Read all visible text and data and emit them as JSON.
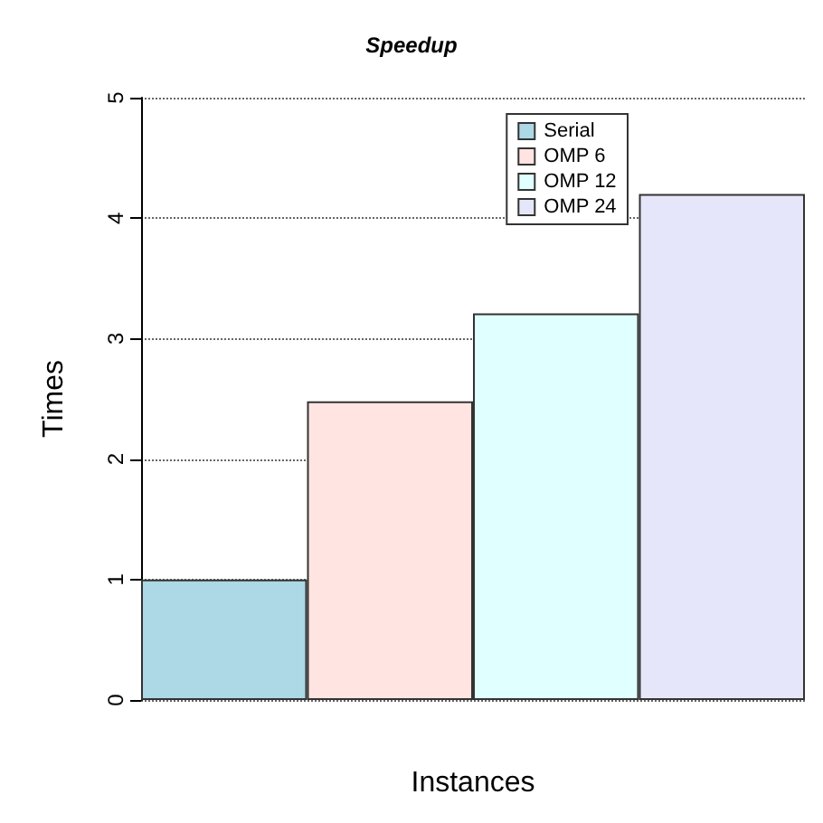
{
  "chart_data": {
    "type": "bar",
    "title": "Speedup",
    "xlabel": "Instances",
    "ylabel": "Times",
    "categories": [
      null,
      null,
      null,
      null
    ],
    "series": [
      {
        "name": "Serial",
        "color": "#add8e6",
        "values": [
          1.0,
          null,
          null,
          null
        ]
      },
      {
        "name": "OMP 6",
        "color": "#ffe4e1",
        "values": [
          null,
          2.48,
          null,
          null
        ]
      },
      {
        "name": "OMP 12",
        "color": "#e0ffff",
        "values": [
          null,
          null,
          3.21,
          null
        ]
      },
      {
        "name": "OMP 24",
        "color": "#e6e6fa",
        "values": [
          null,
          null,
          null,
          4.2
        ]
      }
    ],
    "ylim": [
      0,
      5
    ],
    "yticks": [
      0,
      1,
      2,
      3,
      4,
      5
    ],
    "grid": "y",
    "legend": "top right"
  }
}
